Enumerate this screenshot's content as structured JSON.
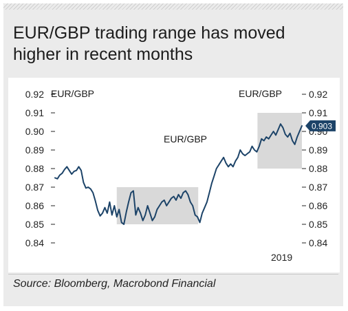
{
  "chart_data": {
    "type": "line",
    "title": "EUR/GBP trading range has moved higher in recent months",
    "source": "Source: Bloomberg, Macrobond Financial",
    "ylim": [
      0.84,
      0.92
    ],
    "yticks": [
      "0.92",
      "0.91",
      "0.90",
      "0.89",
      "0.88",
      "0.87",
      "0.86",
      "0.85",
      "0.84"
    ],
    "x_label_year": "2019",
    "left_axis_label": "EUR/GBP",
    "right_axis_label": "EUR/GBP",
    "series_label": "EUR/GBP",
    "last_value_label": "0.903",
    "grid": false,
    "line_color": "#1c4368",
    "range_color": "#d9d9d9",
    "ranges": [
      {
        "name": "earlier range",
        "x_start": 0.25,
        "x_end": 0.58,
        "y_low": 0.85,
        "y_high": 0.87
      },
      {
        "name": "recent range",
        "x_start": 0.82,
        "x_end": 1.0,
        "y_low": 0.88,
        "y_high": 0.91
      }
    ],
    "series": [
      {
        "values": [
          0.875,
          0.8745,
          0.8765,
          0.8775,
          0.8795,
          0.881,
          0.879,
          0.877,
          0.8785,
          0.879,
          0.881,
          0.879,
          0.8725,
          0.8695,
          0.87,
          0.869,
          0.867,
          0.8625,
          0.8575,
          0.8545,
          0.856,
          0.859,
          0.856,
          0.862,
          0.855,
          0.86,
          0.854,
          0.858,
          0.851,
          0.85,
          0.8565,
          0.862,
          0.867,
          0.868,
          0.855,
          0.859,
          0.856,
          0.852,
          0.855,
          0.86,
          0.856,
          0.852,
          0.854,
          0.858,
          0.86,
          0.862,
          0.863,
          0.86,
          0.862,
          0.864,
          0.865,
          0.863,
          0.866,
          0.864,
          0.867,
          0.868,
          0.866,
          0.862,
          0.86,
          0.855,
          0.854,
          0.851,
          0.856,
          0.859,
          0.862,
          0.867,
          0.872,
          0.876,
          0.88,
          0.882,
          0.884,
          0.886,
          0.883,
          0.881,
          0.8825,
          0.881,
          0.884,
          0.886,
          0.89,
          0.888,
          0.887,
          0.888,
          0.889,
          0.892,
          0.89,
          0.889,
          0.892,
          0.896,
          0.895,
          0.897,
          0.896,
          0.898,
          0.9,
          0.898,
          0.901,
          0.904,
          0.902,
          0.8985,
          0.897,
          0.899,
          0.895,
          0.893,
          0.897,
          0.9,
          0.903
        ]
      }
    ]
  }
}
